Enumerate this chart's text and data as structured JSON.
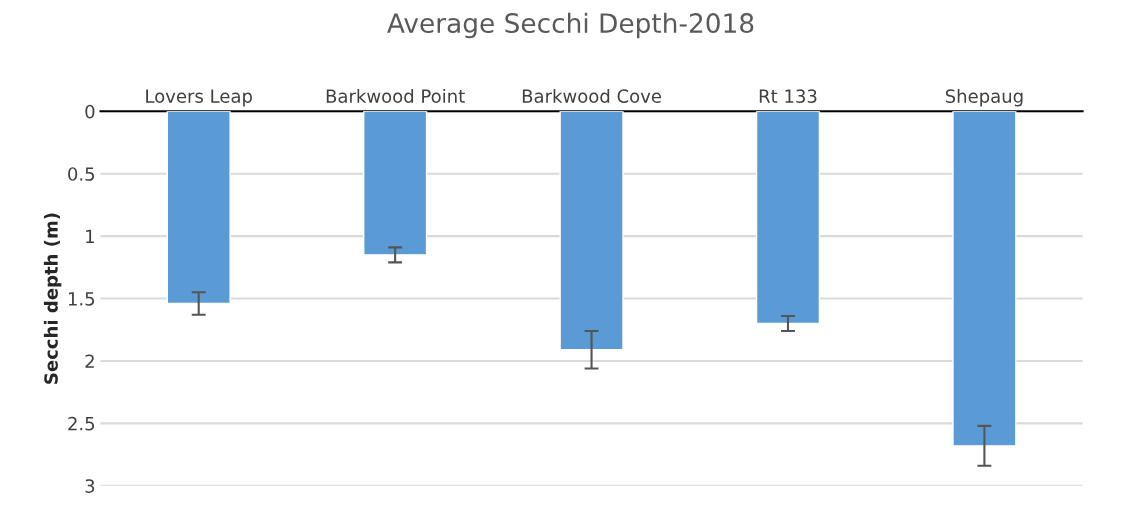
{
  "chart_data": {
    "type": "bar",
    "title": "Average Secchi Depth-2018",
    "ylabel": "Secchi depth (m)",
    "categories": [
      "Lovers Leap",
      "Barkwood Point",
      "Barkwood Cove",
      "Rt 133",
      "Shepaug"
    ],
    "values": [
      1.54,
      1.15,
      1.91,
      1.7,
      2.68
    ],
    "errors": [
      0.09,
      0.06,
      0.15,
      0.06,
      0.16
    ],
    "color": "#5b9bd5",
    "ylim": [
      3,
      0
    ],
    "yticks": [
      0,
      0.5,
      1,
      1.5,
      2,
      2.5,
      3
    ],
    "grid": "y"
  }
}
